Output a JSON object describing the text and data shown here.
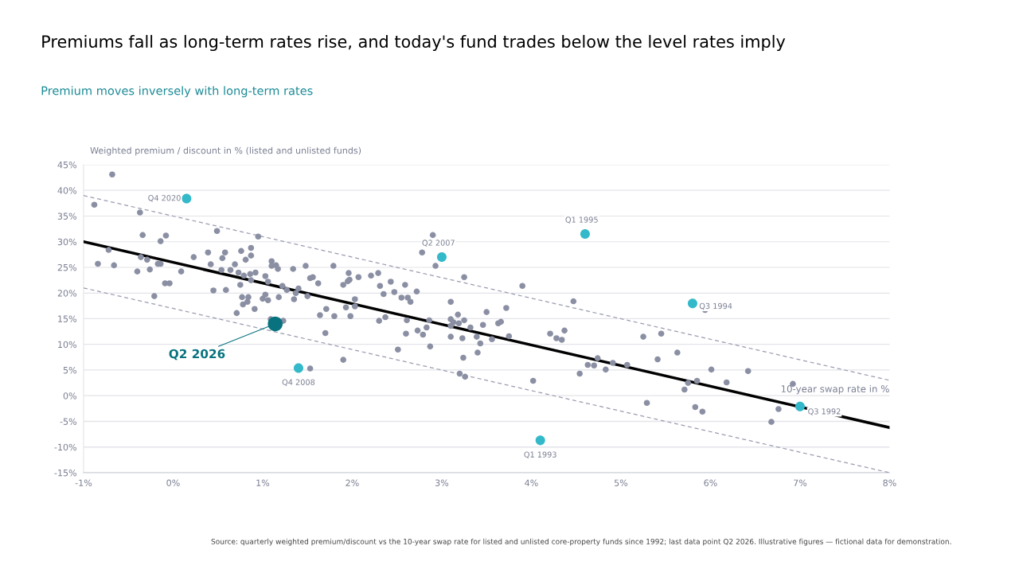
{
  "chart_data": {
    "type": "scatter",
    "title": "Premiums fall as long-term rates rise, and today's fund trades below the level rates imply",
    "subtitle": "Premium moves inversely with long-term rates",
    "ylabel": "Weighted premium / discount in % (listed and unlisted funds)",
    "xlabel": "10-year swap rate in %",
    "xlim": [
      -1,
      8
    ],
    "xticks": [
      {
        "value": -1,
        "label": "-1%"
      },
      {
        "value": 0,
        "label": "0%"
      },
      {
        "value": 1,
        "label": "1%"
      },
      {
        "value": 2,
        "label": "2%"
      },
      {
        "value": 3,
        "label": "3%"
      },
      {
        "value": 4,
        "label": "4%"
      },
      {
        "value": 5,
        "label": "5%"
      },
      {
        "value": 6,
        "label": "6%"
      },
      {
        "value": 7,
        "label": "7%"
      },
      {
        "value": 8,
        "label": "8%"
      }
    ],
    "ylim": [
      -15,
      45
    ],
    "yticks": [
      {
        "value": -15,
        "label": "-15%"
      },
      {
        "value": -10,
        "label": "-10%"
      },
      {
        "value": -5,
        "label": "-5%"
      },
      {
        "value": 0,
        "label": "0%"
      },
      {
        "value": 5,
        "label": "5%"
      },
      {
        "value": 10,
        "label": "10%"
      },
      {
        "value": 15,
        "label": "15%"
      },
      {
        "value": 20,
        "label": "20%"
      },
      {
        "value": 25,
        "label": "25%"
      },
      {
        "value": 30,
        "label": "30%"
      },
      {
        "value": 35,
        "label": "35%"
      },
      {
        "value": 40,
        "label": "40%"
      },
      {
        "value": 45,
        "label": "45%"
      }
    ],
    "grid": "y",
    "marker": "circle",
    "series": [
      {
        "type": "line",
        "color": "#9a9cb0",
        "line_style": "dashed",
        "marker": "none",
        "x": [
          -1,
          8
        ],
        "values": [
          39,
          3
        ]
      },
      {
        "type": "line",
        "color": "#9a9cb0",
        "line_style": "dashed",
        "marker": "none",
        "x": [
          -1,
          8
        ],
        "values": [
          21,
          -15
        ]
      },
      {
        "color": "#8a8fa3",
        "x": [
          -0.68,
          -0.88,
          -0.84,
          -0.72,
          -0.66,
          -0.37,
          -0.34,
          -0.36,
          -0.29,
          -0.26,
          -0.4,
          -0.21,
          -0.17,
          -0.14,
          -0.14,
          -0.08,
          -0.09,
          -0.04,
          0.09,
          0.23,
          0.39,
          0.42,
          0.45,
          0.49,
          0.54,
          0.55,
          0.58,
          0.59,
          0.64,
          0.69,
          0.73,
          0.76,
          0.75,
          0.79,
          0.81,
          0.86,
          0.87,
          0.87,
          0.92,
          0.95,
          0.87,
          0.77,
          0.78,
          0.84,
          0.83,
          0.71,
          0.91,
          1.0,
          1.03,
          1.06,
          1.03,
          1.06,
          1.1,
          1.1,
          1.15,
          1.17,
          1.09,
          1.23,
          1.18,
          1.22,
          1.27,
          1.34,
          1.35,
          1.37,
          1.4,
          1.48,
          1.5,
          1.53,
          1.56,
          1.62,
          1.64,
          1.71,
          1.8,
          1.79,
          1.7,
          1.9,
          1.96,
          1.97,
          1.95,
          2.03,
          2.07,
          1.93,
          1.98,
          1.9,
          1.53,
          2.9,
          2.78,
          2.93,
          3.25,
          3.9,
          4.47,
          2.21,
          2.29,
          2.31,
          2.35,
          2.43,
          2.47,
          2.59,
          2.55,
          2.62,
          2.65,
          2.72,
          2.03,
          2.3,
          2.37,
          2.51,
          2.6,
          2.61,
          2.73,
          2.79,
          2.83,
          2.86,
          2.87,
          3.1,
          3.1,
          3.13,
          3.1,
          3.18,
          3.19,
          3.25,
          3.1,
          3.23,
          3.24,
          3.2,
          3.26,
          3.32,
          3.39,
          3.43,
          3.4,
          3.46,
          3.5,
          3.56,
          3.63,
          3.66,
          3.72,
          3.75,
          4.02,
          4.21,
          4.28,
          4.34,
          4.37,
          4.54,
          4.63,
          4.7,
          4.74,
          4.83,
          4.91,
          5.07,
          5.94,
          5.25,
          5.45,
          5.41,
          5.63,
          6.01,
          6.42,
          6.92,
          5.75,
          5.85,
          5.71,
          6.18,
          5.29,
          5.83,
          5.91,
          6.76,
          6.68
        ],
        "values": [
          43.1,
          37.2,
          25.7,
          28.4,
          25.4,
          35.7,
          31.3,
          27.0,
          26.5,
          24.6,
          24.2,
          19.4,
          25.7,
          25.7,
          30.1,
          31.2,
          21.9,
          21.9,
          24.2,
          27.0,
          27.9,
          25.6,
          20.5,
          32.1,
          24.5,
          26.8,
          27.9,
          20.6,
          24.5,
          25.6,
          24.0,
          28.2,
          21.6,
          23.4,
          26.5,
          23.7,
          27.3,
          28.8,
          24.0,
          31.0,
          22.5,
          19.2,
          17.8,
          19.2,
          18.3,
          16.1,
          16.9,
          18.9,
          19.7,
          18.6,
          23.3,
          22.2,
          26.2,
          25.3,
          25.4,
          24.7,
          14.9,
          14.6,
          19.2,
          21.4,
          20.6,
          24.7,
          18.8,
          20.0,
          20.9,
          25.3,
          19.4,
          22.9,
          23.1,
          21.9,
          15.7,
          16.9,
          15.5,
          25.3,
          12.2,
          21.6,
          23.9,
          22.6,
          22.3,
          18.8,
          23.1,
          17.2,
          15.5,
          7.0,
          5.3,
          31.3,
          27.9,
          25.3,
          23.1,
          21.4,
          18.4,
          23.4,
          23.9,
          21.4,
          19.8,
          22.2,
          20.2,
          21.6,
          19.1,
          19.1,
          18.3,
          20.3,
          17.4,
          14.6,
          15.3,
          9.0,
          12.1,
          14.7,
          12.7,
          11.9,
          13.3,
          14.7,
          9.6,
          18.3,
          14.9,
          14.3,
          13.6,
          15.8,
          14.1,
          14.7,
          11.5,
          11.2,
          7.4,
          4.3,
          3.7,
          13.3,
          11.5,
          10.2,
          8.4,
          13.8,
          16.3,
          11.0,
          14.1,
          14.4,
          17.1,
          11.6,
          2.9,
          12.1,
          11.2,
          10.9,
          12.7,
          4.3,
          6.0,
          5.9,
          7.3,
          5.1,
          6.4,
          6.0,
          16.7,
          11.5,
          12.1,
          7.1,
          8.4,
          5.1,
          4.8,
          2.3,
          2.5,
          2.9,
          1.2,
          2.6,
          -1.4,
          -2.2,
          -3.1,
          -2.6,
          -5.1
        ]
      },
      {
        "type": "line",
        "color": "#000000",
        "line_style": "solid",
        "marker": "none",
        "x": [
          -1,
          8
        ],
        "values": [
          30,
          -6.2
        ]
      },
      {
        "color": "#33b9c9",
        "x": [
          0.15,
          3.0,
          4.6,
          5.8,
          1.4,
          4.1,
          7.0
        ],
        "values": [
          38.4,
          27.0,
          31.5,
          18.0,
          5.4,
          -8.7,
          -2.1
        ]
      },
      {
        "color": "#08737f",
        "x": [
          1.14
        ],
        "values": [
          14.0
        ]
      }
    ],
    "annotations": [
      {
        "text": "Q4 2020",
        "x": 0.15,
        "y": 38.4
      },
      {
        "text": "Q2 2007",
        "x": 3.0,
        "y": 27.0
      },
      {
        "text": "Q1 1995",
        "x": 4.6,
        "y": 31.5
      },
      {
        "text": "Q3 1994",
        "x": 5.8,
        "y": 18.0
      },
      {
        "text": "Q4 2008",
        "x": 1.4,
        "y": 5.4
      },
      {
        "text": "Q1 1993",
        "x": 4.1,
        "y": -8.7
      },
      {
        "text": "Q3 1992",
        "x": 7.0,
        "y": -2.1
      },
      {
        "text": "Q2 2026",
        "x": 1.14,
        "y": 14.0
      },
      "Source: quarterly weighted premium/discount vs the 10-year swap rate for listed and unlisted core-property funds since 1992; last data point Q2 2026. Illustrative figures — fictional data for demonstration."
    ]
  }
}
